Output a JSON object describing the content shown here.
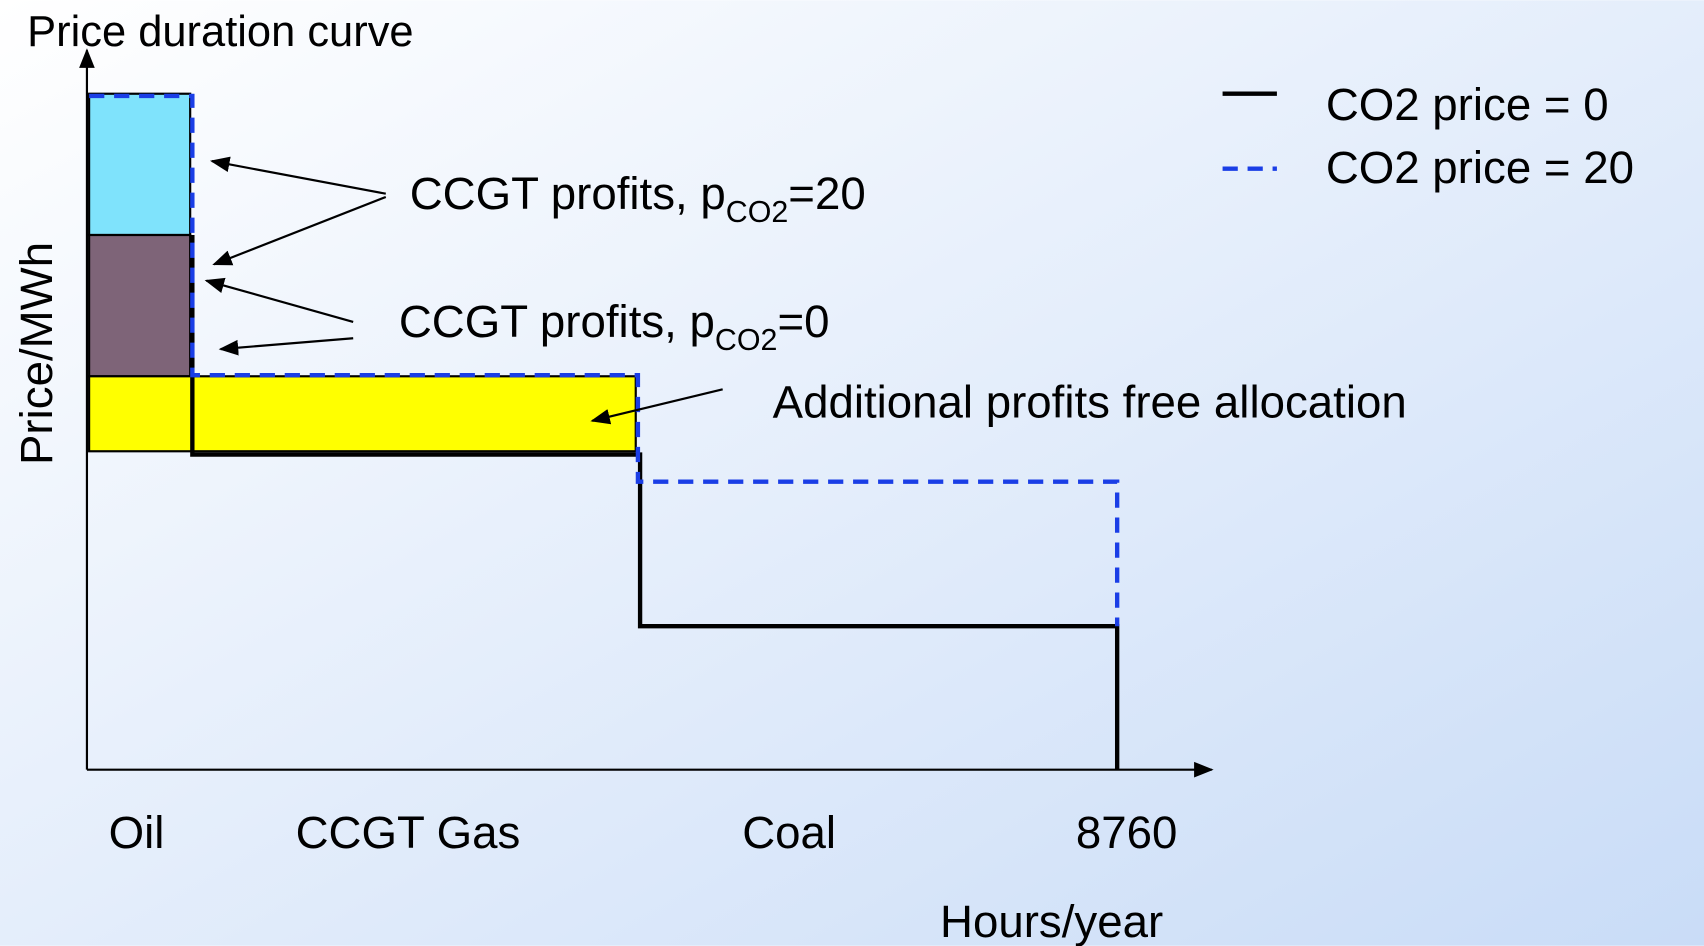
{
  "title": "Price duration curve",
  "y_axis_label": "Price/MWh",
  "x_axis_label": "Hours/year",
  "x_labels": [
    "Oil",
    "CCGT Gas",
    "Coal",
    "8760"
  ],
  "legend": [
    {
      "label": "CO2 price = 0"
    },
    {
      "label": "CO2 price = 20"
    }
  ],
  "annotations": [
    {
      "text": "CCGT profits, p",
      "subscript": "CO2",
      "suffix": "=20"
    },
    {
      "text": "CCGT profits, p",
      "subscript": "CO2",
      "suffix": "=0"
    },
    {
      "text": "Additional profits free allocation"
    }
  ]
}
